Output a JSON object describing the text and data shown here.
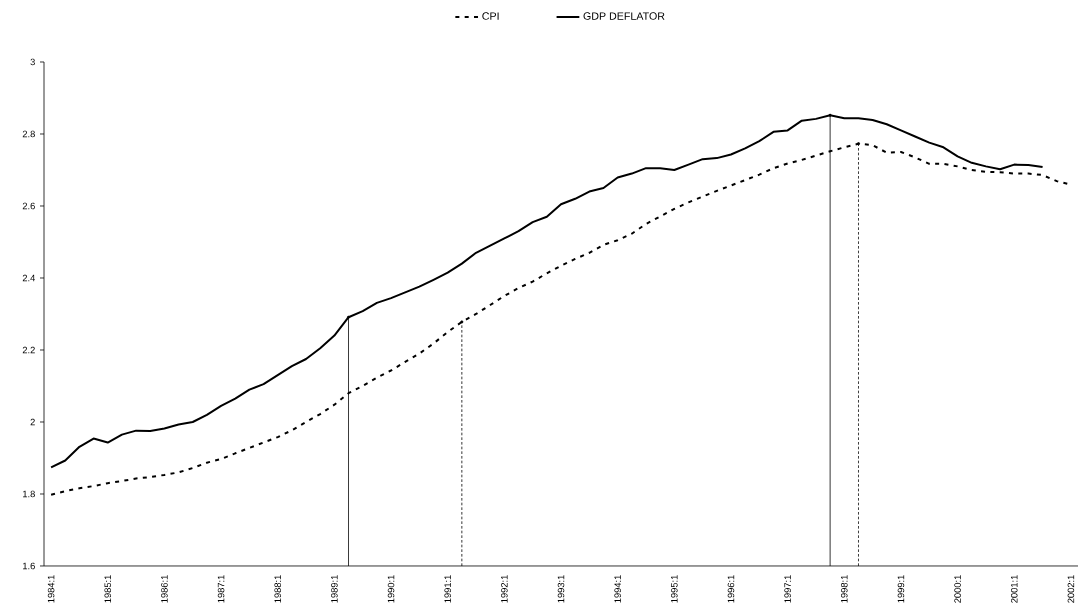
{
  "chart_data": {
    "type": "line",
    "legend": "top",
    "categories": [
      "1984:1",
      null,
      null,
      null,
      "1985:1",
      null,
      null,
      null,
      "1986:1",
      null,
      null,
      null,
      "1987:1",
      null,
      null,
      null,
      "1988:1",
      null,
      null,
      null,
      "1989:1",
      null,
      null,
      null,
      "1990:1",
      null,
      null,
      null,
      "1991:1",
      null,
      null,
      null,
      "1992:1",
      null,
      null,
      null,
      "1993:1",
      null,
      null,
      null,
      "1994:1",
      null,
      null,
      null,
      "1995:1",
      null,
      null,
      null,
      "1996:1",
      null,
      null,
      null,
      "1997:1",
      null,
      null,
      null,
      "1998:1",
      null,
      null,
      null,
      "1999:1",
      null,
      null,
      null,
      "2000:1",
      null,
      null,
      null,
      "2001:1",
      null,
      null,
      null,
      "2002:1"
    ],
    "series": [
      {
        "name": "CPI",
        "color": "#000000",
        "line_style": "dashed",
        "values": [
          1.798,
          1.808,
          1.816,
          1.822,
          1.83,
          1.836,
          1.843,
          1.847,
          1.853,
          1.86,
          1.872,
          1.887,
          1.897,
          1.913,
          1.928,
          1.943,
          1.958,
          1.977,
          2.0,
          2.022,
          2.048,
          2.08,
          2.1,
          2.123,
          2.143,
          2.167,
          2.19,
          2.218,
          2.25,
          2.278,
          2.3,
          2.325,
          2.35,
          2.372,
          2.39,
          2.413,
          2.434,
          2.453,
          2.47,
          2.492,
          2.505,
          2.523,
          2.55,
          2.571,
          2.592,
          2.61,
          2.626,
          2.642,
          2.657,
          2.672,
          2.687,
          2.705,
          2.718,
          2.728,
          2.74,
          2.752,
          2.763,
          2.773,
          2.769,
          2.748,
          2.75,
          2.735,
          2.717,
          2.717,
          2.71,
          2.7,
          2.695,
          2.694,
          2.69,
          2.69,
          2.686,
          2.669,
          2.659
        ]
      },
      {
        "name": "GDP DEFLATOR",
        "color": "#000000",
        "line_style": "solid",
        "values": [
          1.874,
          1.893,
          1.931,
          1.954,
          1.943,
          1.965,
          1.976,
          1.975,
          1.982,
          1.993,
          2.0,
          2.02,
          2.045,
          2.065,
          2.09,
          2.105,
          2.13,
          2.155,
          2.175,
          2.205,
          2.24,
          2.291,
          2.308,
          2.331,
          2.344,
          2.36,
          2.376,
          2.395,
          2.415,
          2.44,
          2.47,
          2.49,
          2.51,
          2.53,
          2.555,
          2.57,
          2.605,
          2.62,
          2.64,
          2.65,
          2.679,
          2.69,
          2.705,
          2.705,
          2.7,
          2.715,
          2.73,
          2.733,
          2.743,
          2.76,
          2.78,
          2.806,
          2.81,
          2.837,
          2.842,
          2.852,
          2.844,
          2.844,
          2.839,
          2.827,
          2.81,
          2.793,
          2.776,
          2.763,
          2.738,
          2.72,
          2.71,
          2.702,
          2.715,
          2.714,
          2.708,
          null,
          null
        ]
      },
      {
        "type": "lollipop",
        "color": "#000000",
        "line_style": "solid",
        "values": [
          null,
          null,
          null,
          null,
          null,
          null,
          null,
          null,
          null,
          null,
          null,
          null,
          null,
          null,
          null,
          null,
          null,
          null,
          null,
          null,
          null,
          2.291,
          null,
          null,
          null,
          null,
          null,
          null,
          null,
          null,
          null,
          null,
          null,
          null,
          null,
          null,
          null,
          null,
          null,
          null,
          null,
          null,
          null,
          null,
          null,
          null,
          null,
          null,
          null,
          null,
          null,
          null,
          null,
          null,
          null,
          2.852,
          null,
          null,
          null,
          null,
          null,
          null,
          null,
          null,
          null,
          null,
          null,
          null,
          null,
          null,
          null,
          null,
          null
        ]
      },
      {
        "type": "lollipop",
        "color": "#000000",
        "line_style": "dashed",
        "values": [
          null,
          null,
          null,
          null,
          null,
          null,
          null,
          null,
          null,
          null,
          null,
          null,
          null,
          null,
          null,
          null,
          null,
          null,
          null,
          null,
          null,
          null,
          null,
          null,
          null,
          null,
          null,
          null,
          null,
          2.278,
          null,
          null,
          null,
          null,
          null,
          null,
          null,
          null,
          null,
          null,
          null,
          null,
          null,
          null,
          null,
          null,
          null,
          null,
          null,
          null,
          null,
          null,
          null,
          null,
          null,
          null,
          null,
          2.773,
          null,
          null,
          null,
          null,
          null,
          null,
          null,
          null,
          null,
          null,
          null,
          null,
          null,
          null,
          null
        ]
      }
    ],
    "ylim": [
      1.6,
      3
    ],
    "yticks": [
      1.6,
      1.8,
      2,
      2.2,
      2.4,
      2.6,
      2.8,
      3
    ]
  }
}
